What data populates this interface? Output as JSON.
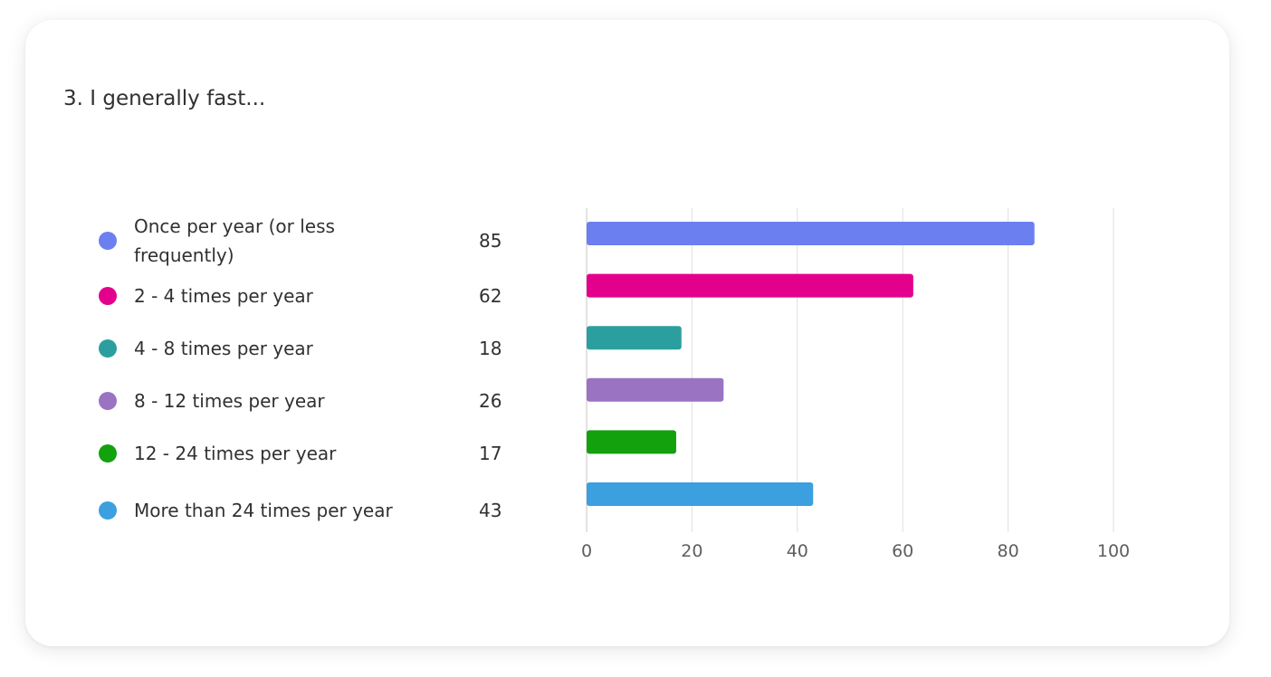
{
  "question": {
    "text": "3. I generally fast..."
  },
  "chart_data": {
    "type": "bar",
    "orientation": "horizontal",
    "categories": [
      "Once per year (or less frequently)",
      "2 - 4 times per year",
      "4 - 8 times per year",
      "8 - 12 times per year",
      "12 - 24 times per year",
      "More than 24 times per year"
    ],
    "values": [
      85,
      62,
      18,
      26,
      17,
      43
    ],
    "colors": [
      "#6b7ff0",
      "#e3008c",
      "#2b9fa0",
      "#9a73c3",
      "#13a10e",
      "#3b9fe0"
    ],
    "xlim": [
      0,
      100
    ],
    "xticks": [
      0,
      20,
      40,
      60,
      80,
      100
    ],
    "grid": "vertical",
    "legend_position": "left",
    "title": "",
    "xlabel": "",
    "ylabel": ""
  }
}
